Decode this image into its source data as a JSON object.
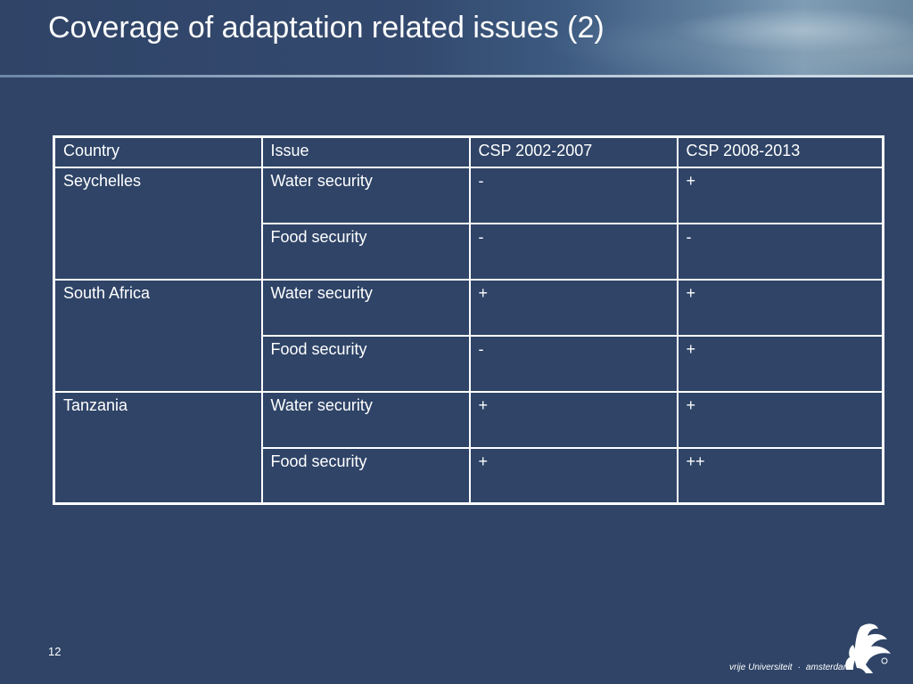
{
  "slide": {
    "title": "Coverage of adaptation related issues (2)",
    "page_number": "12"
  },
  "table": {
    "headers": [
      "Country",
      "Issue",
      "CSP 2002-2007",
      "CSP 2008-2013"
    ],
    "rows": [
      {
        "country": "Seychelles",
        "issue": "Water security",
        "csp_2002_2007": "-",
        "csp_2008_2013": "+"
      },
      {
        "country": "",
        "issue": "Food security",
        "csp_2002_2007": "-",
        "csp_2008_2013": "-"
      },
      {
        "country": "South Africa",
        "issue": "Water security",
        "csp_2002_2007": "+",
        "csp_2008_2013": "+"
      },
      {
        "country": "",
        "issue": "Food security",
        "csp_2002_2007": "-",
        "csp_2008_2013": "+"
      },
      {
        "country": "Tanzania",
        "issue": "Water security",
        "csp_2002_2007": "+",
        "csp_2008_2013": "+"
      },
      {
        "country": "",
        "issue": "Food security",
        "csp_2002_2007": "+",
        "csp_2008_2013": "++"
      }
    ]
  },
  "logo": {
    "part1": "vrije Universiteit",
    "part2": "amsterdam",
    "icon": "griffin-logo-icon"
  },
  "colors": {
    "background": "#2f4467",
    "text": "#ffffff"
  }
}
